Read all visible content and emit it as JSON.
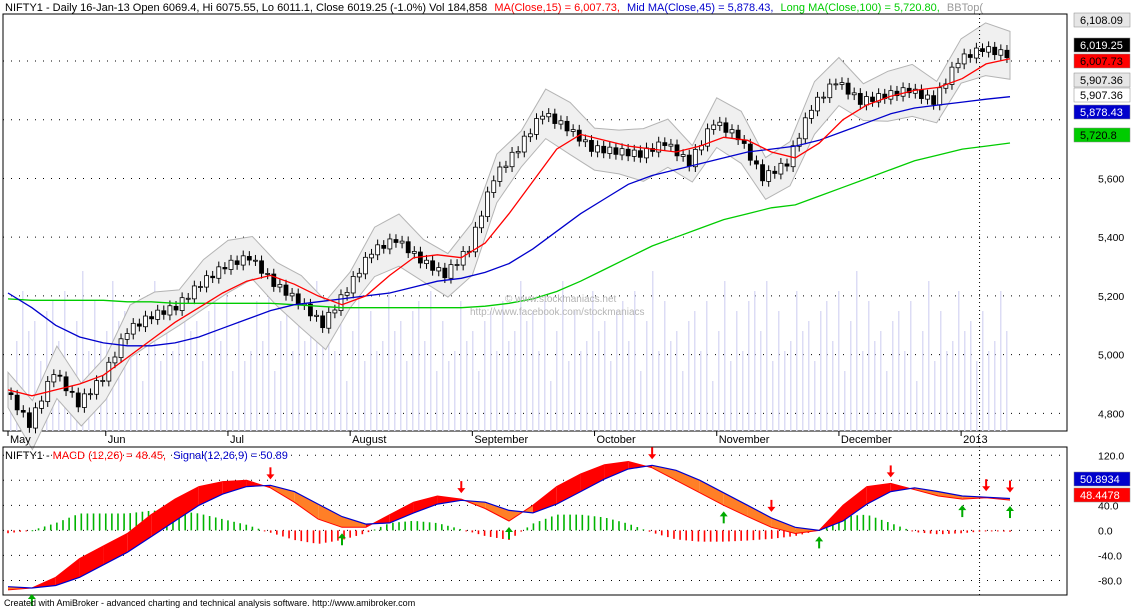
{
  "header": {
    "price_prefix": "NIFTY1 - Daily 16-Jan-13 Open 6069.4, Hi 6075.55, Lo 6011.1, Close 6019.25 (-1.0%) Vol 184,858",
    "ma_label": "MA(Close,15) = 6,007.73,",
    "mid_label": "Mid MA(Close,45) = 5,878.43,",
    "long_label": "Long MA(Close,100) = 5,720.80,",
    "bb_label": "BBTop("
  },
  "macd_header": {
    "prefix": "NIFTY1 - ",
    "macd_label": "MACD (12,26) = 48.45,",
    "signal_label": "Signal(12,26,9) = 50.89"
  },
  "watermark": {
    "line1": "© www.stockmaniacs.net",
    "line2": "http://www.facebook.com/stockmaniacs"
  },
  "footer": "Created with AmiBroker - advanced charting and technical analysis software. http://www.amibroker.com",
  "price_badges": [
    {
      "text": "6,108.09",
      "bg": "#e6e6e6",
      "fg": "#000000"
    },
    {
      "text": "6,019.25",
      "bg": "#000000",
      "fg": "#ffffff"
    },
    {
      "text": "6,007.73",
      "bg": "#ff0000",
      "fg": "#000000"
    },
    {
      "text": "5,907.36",
      "bg": "#e6e6e6",
      "fg": "#000000"
    },
    {
      "text": "5,907.36",
      "bg": "#ffffff",
      "fg": "#000000"
    },
    {
      "text": "5,878.43",
      "bg": "#0000cc",
      "fg": "#ffffff"
    },
    {
      "text": "5,720.8",
      "bg": "#00cc00",
      "fg": "#000000"
    }
  ],
  "macd_badges": [
    {
      "text": "50.8934",
      "bg": "#0000cc",
      "fg": "#ffffff"
    },
    {
      "text": "48.4478",
      "bg": "#ff0000",
      "fg": "#ffffff"
    }
  ],
  "colors": {
    "ma_short": "#ff0000",
    "ma_mid": "#0000cc",
    "ma_long": "#00cc00",
    "bollinger": "#b4b4b4",
    "volume": "#dcdcf5",
    "hist_up": "#00b400",
    "hist_down": "#ff0000",
    "macd_fill_up": "#ff0000",
    "macd_fill_down": "#ff7f27"
  },
  "chart_data": [
    {
      "type": "candlestick",
      "title": "NIFTY1 - Daily",
      "x_tick_labels": [
        "May",
        "Jun",
        "Jul",
        "August",
        "September",
        "October",
        "November",
        "December",
        "2013"
      ],
      "y_ticks": [
        4800,
        5000,
        5200,
        5400,
        5600,
        5800,
        6000
      ],
      "y_tick_labels": [
        "4,800",
        "5,000",
        "5,200",
        "5,400",
        "5,600",
        "",
        ""
      ],
      "ylim": [
        4740,
        6160
      ],
      "grid": true,
      "last_bar": {
        "date": "16-Jan-13",
        "open": 6069.4,
        "high": 6075.55,
        "low": 6011.1,
        "close": 6019.25,
        "change_pct": -1.0,
        "volume": 184858
      },
      "indicator_values": {
        "ma_close_15": 6007.73,
        "mid_ma_close_45": 5878.43,
        "long_ma_close_100": 5720.8,
        "bbtop": 6108.09,
        "bbbottom": 5907.36
      },
      "weekly_close": [
        [
          "May",
          4880
        ],
        [
          "",
          4760
        ],
        [
          "",
          4940
        ],
        [
          "",
          4830
        ],
        [
          "Jun",
          4920
        ],
        [
          "",
          5080
        ],
        [
          "",
          5130
        ],
        [
          "",
          5160
        ],
        [
          "",
          5240
        ],
        [
          "Jul",
          5300
        ],
        [
          "",
          5330
        ],
        [
          "",
          5240
        ],
        [
          "",
          5180
        ],
        [
          "",
          5100
        ],
        [
          "August",
          5220
        ],
        [
          "",
          5350
        ],
        [
          "",
          5390
        ],
        [
          "",
          5320
        ],
        [
          "",
          5270
        ],
        [
          "September",
          5360
        ],
        [
          "",
          5600
        ],
        [
          "",
          5700
        ],
        [
          "",
          5820
        ],
        [
          "",
          5770
        ],
        [
          "October",
          5700
        ],
        [
          "",
          5690
        ],
        [
          "",
          5680
        ],
        [
          "",
          5720
        ],
        [
          "",
          5650
        ],
        [
          "November",
          5790
        ],
        [
          "",
          5740
        ],
        [
          "",
          5600
        ],
        [
          "",
          5650
        ],
        [
          "",
          5840
        ],
        [
          "December",
          5930
        ],
        [
          "",
          5860
        ],
        [
          "",
          5880
        ],
        [
          "",
          5900
        ],
        [
          "",
          5860
        ],
        [
          "2013",
          6000
        ],
        [
          "",
          6040
        ],
        [
          "",
          6019.25
        ]
      ],
      "series": [
        {
          "name": "MA(Close,15)",
          "values": [
            4880,
            4860,
            4880,
            4900,
            4930,
            4990,
            5050,
            5110,
            5160,
            5210,
            5250,
            5270,
            5240,
            5200,
            5170,
            5200,
            5270,
            5330,
            5340,
            5330,
            5380,
            5480,
            5590,
            5700,
            5750,
            5730,
            5710,
            5700,
            5690,
            5710,
            5740,
            5730,
            5690,
            5670,
            5720,
            5800,
            5850,
            5880,
            5900,
            5910,
            5940,
            5990,
            6007.73
          ]
        },
        {
          "name": "Mid MA(Close,45)",
          "values": [
            5210,
            5160,
            5100,
            5060,
            5040,
            5030,
            5030,
            5040,
            5060,
            5090,
            5120,
            5150,
            5170,
            5180,
            5190,
            5200,
            5210,
            5230,
            5250,
            5260,
            5280,
            5310,
            5360,
            5420,
            5480,
            5530,
            5580,
            5610,
            5630,
            5650,
            5670,
            5690,
            5700,
            5710,
            5730,
            5760,
            5790,
            5820,
            5840,
            5850,
            5860,
            5870,
            5878.43
          ]
        },
        {
          "name": "Long MA(Close,100)",
          "values": [
            5190,
            5185,
            5185,
            5185,
            5185,
            5180,
            5180,
            5175,
            5175,
            5175,
            5175,
            5175,
            5170,
            5165,
            5160,
            5160,
            5160,
            5160,
            5160,
            5160,
            5165,
            5175,
            5190,
            5215,
            5250,
            5290,
            5330,
            5370,
            5400,
            5430,
            5460,
            5480,
            5500,
            5510,
            5540,
            5570,
            5600,
            5630,
            5660,
            5680,
            5700,
            5710,
            5720.8
          ]
        }
      ]
    },
    {
      "type": "line",
      "title": "MACD (12,26) / Signal(12,26,9)",
      "y_ticks": [
        -80,
        -40,
        0,
        40,
        80,
        120
      ],
      "y_tick_labels": [
        "-80.0",
        "-40.0",
        "0.0",
        "40.0",
        "80.0",
        "120.0"
      ],
      "ylim": [
        -100,
        130
      ],
      "series": [
        {
          "name": "MACD (12,26)",
          "values": [
            -95,
            -92,
            -75,
            -45,
            -25,
            -5,
            25,
            50,
            70,
            78,
            80,
            68,
            45,
            18,
            5,
            5,
            25,
            45,
            55,
            50,
            35,
            15,
            40,
            70,
            90,
            105,
            110,
            100,
            80,
            60,
            40,
            22,
            5,
            -5,
            0,
            40,
            70,
            75,
            65,
            55,
            50,
            52,
            48.45
          ]
        },
        {
          "name": "Signal(12,26,9)",
          "values": [
            -90,
            -92,
            -88,
            -75,
            -55,
            -35,
            -10,
            15,
            40,
            58,
            70,
            72,
            62,
            42,
            22,
            10,
            12,
            28,
            42,
            48,
            45,
            32,
            28,
            42,
            62,
            82,
            98,
            104,
            96,
            80,
            60,
            40,
            20,
            5,
            0,
            15,
            42,
            62,
            68,
            62,
            55,
            53,
            50.89
          ]
        }
      ],
      "sell_arrows_at": [
        11,
        19,
        27,
        32,
        37,
        41,
        42
      ],
      "buy_arrows_at": [
        1,
        14,
        21,
        30,
        34,
        40,
        42
      ]
    }
  ]
}
